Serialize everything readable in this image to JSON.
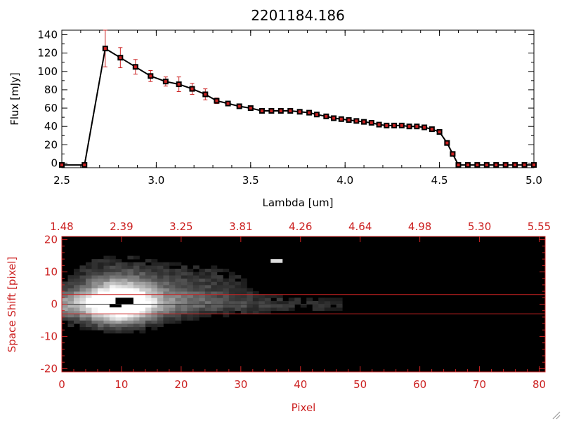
{
  "colors": {
    "axis_black": "#000000",
    "accent_red": "#cc2222",
    "marker_fill": "#cc2222",
    "image_background": "#000000"
  },
  "chart_data": [
    {
      "type": "line",
      "title": "2201184.186",
      "xlabel": "Lambda [um]",
      "ylabel": "Flux [mJy]",
      "xlim": [
        2.5,
        5.0
      ],
      "ylim": [
        -5,
        145
      ],
      "x_ticks": [
        "2.5",
        "3.0",
        "3.5",
        "4.0",
        "4.5",
        "5.0"
      ],
      "y_ticks": [
        "0",
        "20",
        "40",
        "60",
        "80",
        "100",
        "120",
        "140"
      ],
      "grid": false,
      "series": [
        {
          "x": [
            2.5,
            2.62,
            2.73,
            2.81,
            2.89,
            2.97,
            3.05,
            3.12,
            3.19,
            3.26,
            3.32,
            3.38,
            3.44,
            3.5,
            3.56,
            3.61,
            3.66,
            3.71,
            3.76,
            3.81,
            3.85,
            3.9,
            3.94,
            3.98,
            4.02,
            4.06,
            4.1,
            4.14,
            4.18,
            4.22,
            4.26,
            4.3,
            4.34,
            4.38,
            4.42,
            4.46,
            4.5,
            4.54,
            4.57,
            4.6,
            4.65,
            4.7,
            4.75,
            4.8,
            4.85,
            4.9,
            4.95,
            5.0
          ],
          "y": [
            -2,
            -2,
            125,
            115,
            105,
            95,
            89,
            86,
            81,
            75,
            68,
            65,
            62,
            60,
            57,
            57,
            57,
            57,
            56,
            55,
            53,
            51,
            49,
            48,
            47,
            46,
            45,
            44,
            42,
            41,
            41,
            41,
            40,
            40,
            39,
            37,
            34,
            22,
            10,
            -2,
            -2,
            -2,
            -2,
            -2,
            -2,
            -2,
            -2,
            -2
          ],
          "yerr": [
            0,
            0,
            20,
            11,
            8,
            6,
            5,
            8,
            6,
            6,
            3,
            2,
            2,
            2,
            1,
            1,
            1,
            1,
            1,
            1,
            1,
            1,
            1,
            1,
            1,
            1,
            1,
            1,
            1,
            1,
            1,
            1,
            1,
            1,
            1,
            1,
            2,
            2,
            2,
            0,
            0,
            0,
            0,
            0,
            0,
            0,
            0,
            0
          ]
        }
      ]
    },
    {
      "type": "heatmap",
      "xlabel": "Pixel",
      "ylabel": "Space Shift [pixel]",
      "xlim": [
        0,
        81
      ],
      "ylim": [
        -21,
        21
      ],
      "x_ticks": [
        "0",
        "10",
        "20",
        "30",
        "40",
        "50",
        "60",
        "70",
        "80"
      ],
      "top_ticks": [
        "1.48",
        "2.39",
        "3.25",
        "3.81",
        "4.26",
        "4.64",
        "4.98",
        "5.30",
        "5.55"
      ],
      "y_ticks": [
        "-20",
        "-10",
        "0",
        "10",
        "20"
      ],
      "aperture_lines": [
        3,
        -3
      ],
      "signal_extent_pixels": [
        0,
        47
      ]
    }
  ]
}
